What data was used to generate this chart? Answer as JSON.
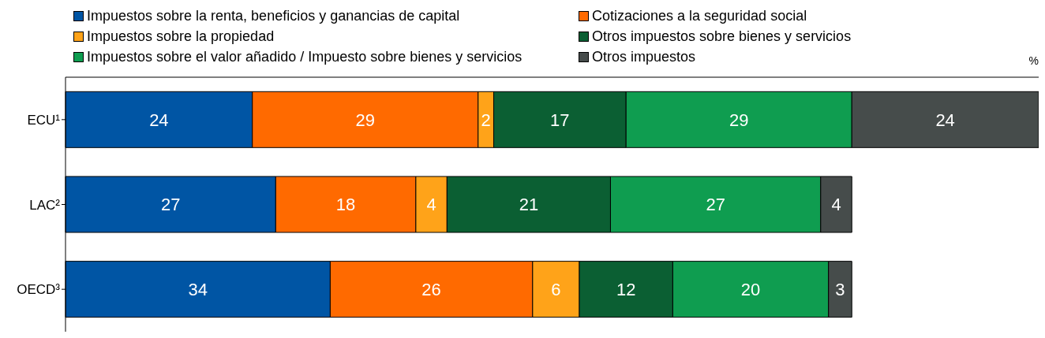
{
  "chart_data": {
    "type": "bar",
    "orientation": "horizontal",
    "stacked": true,
    "data_labels": true,
    "legend": "top",
    "xlabel": "%",
    "categories": [
      "ECU¹",
      "LAC²",
      "OECD³"
    ],
    "series": [
      {
        "name": "Impuestos sobre la renta, beneficios y ganancias de capital",
        "color": "#0055a4",
        "values": [
          24,
          27,
          34
        ]
      },
      {
        "name": "Cotizaciones a la seguridad social",
        "color": "#ff6a00",
        "values": [
          29,
          18,
          26
        ]
      },
      {
        "name": "Impuestos sobre la propiedad",
        "color": "#ffa319",
        "values": [
          2,
          4,
          6
        ]
      },
      {
        "name": "Otros impuestos sobre bienes y servicios",
        "color": "#0b5f33",
        "values": [
          17,
          21,
          12
        ]
      },
      {
        "name": "Impuestos sobre el valor añadido / Impuesto sobre bienes y servicios",
        "color": "#0f9d50",
        "values": [
          29,
          27,
          20
        ]
      },
      {
        "name": "Otros impuestos",
        "color": "#464c4b",
        "values": [
          24,
          4,
          3
        ]
      }
    ]
  }
}
